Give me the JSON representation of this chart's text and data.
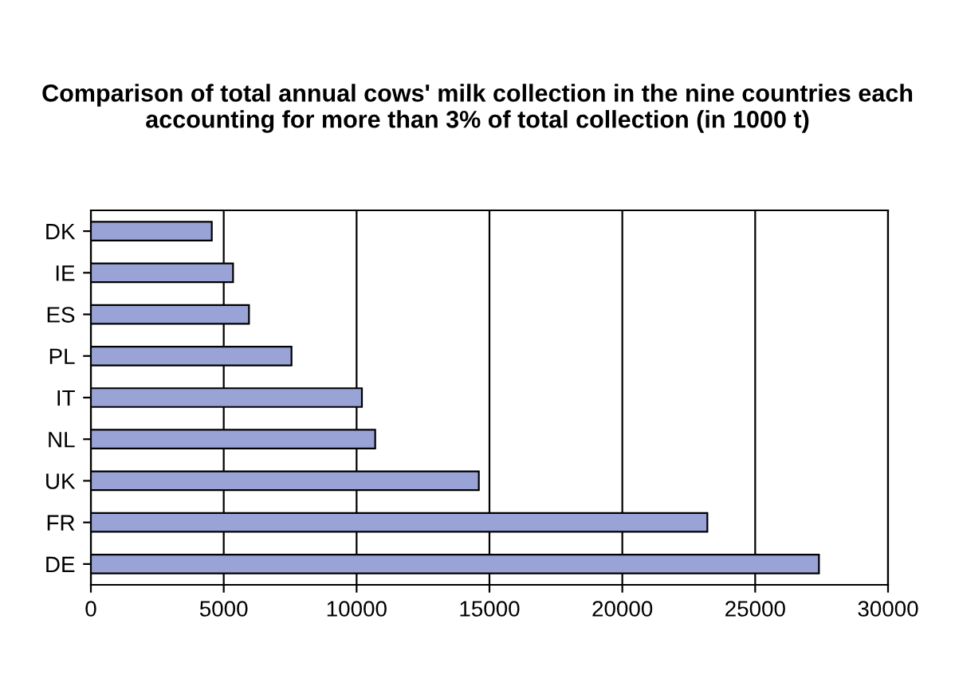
{
  "chart_data": {
    "type": "bar",
    "orientation": "horizontal",
    "title": "Comparison of total annual cows' milk collection in the nine countries each accounting for more than 3% of total collection (in 1000 t)",
    "categories": [
      "DK",
      "IE",
      "ES",
      "PL",
      "IT",
      "NL",
      "UK",
      "FR",
      "DE"
    ],
    "values": [
      4550,
      5350,
      5950,
      7550,
      10200,
      10700,
      14600,
      23200,
      27400
    ],
    "color": "#99a3d6",
    "xlim": [
      0,
      30000
    ],
    "xticks": [
      0,
      5000,
      10000,
      15000,
      20000,
      25000,
      30000
    ],
    "grid": "x",
    "legend": false
  }
}
